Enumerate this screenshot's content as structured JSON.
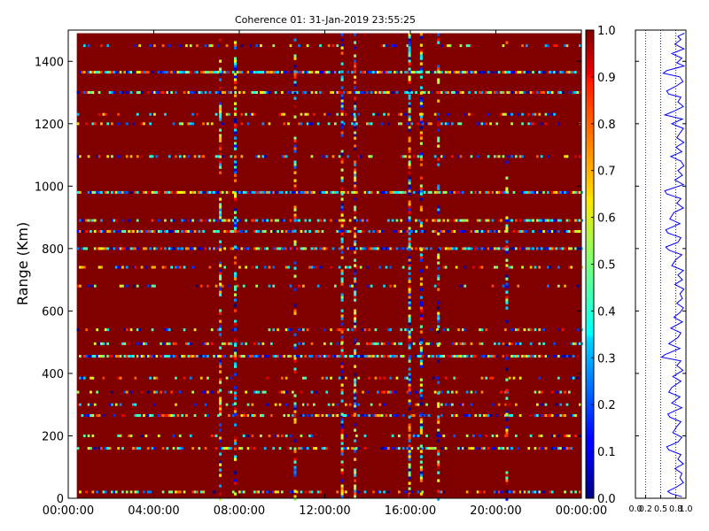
{
  "chart_data": [
    {
      "type": "heatmap",
      "title": "Coherence 01: 31-Jan-2019 23:55:25",
      "ylabel": "Range (Km)",
      "xlabel": "",
      "x_tick_labels": [
        "00:00:00",
        "04:00:00",
        "08:00:00",
        "12:00:00",
        "16:00:00",
        "20:00:00",
        "00:00:00"
      ],
      "x_ticks_hours": [
        0,
        4,
        8,
        12,
        16,
        20,
        24
      ],
      "xlim_hours": [
        0,
        24
      ],
      "ylim": [
        0,
        1500
      ],
      "y_ticks": [
        0,
        200,
        400,
        600,
        800,
        1000,
        1200,
        1400
      ],
      "value_range": [
        0.0,
        1.0
      ],
      "colormap": "jet",
      "background_value": 1.0,
      "data_extent_hours": [
        0.4,
        24
      ],
      "data_extent_range": [
        0,
        1490
      ],
      "colorbar": {
        "ticks": [
          0.0,
          0.1,
          0.2,
          0.3,
          0.4,
          0.5,
          0.6,
          0.7,
          0.8,
          0.9,
          1.0
        ],
        "tick_labels": [
          "0.0",
          "0.1",
          "0.2",
          "0.3",
          "0.4",
          "0.5",
          "0.6",
          "0.7",
          "0.8",
          "0.9",
          "1.0"
        ]
      },
      "low_coherence_range_bands_km": [
        {
          "range": 20,
          "weight": 0.5
        },
        {
          "range": 160,
          "weight": 0.6
        },
        {
          "range": 200,
          "weight": 0.3
        },
        {
          "range": 265,
          "weight": 0.6
        },
        {
          "range": 300,
          "weight": 0.3
        },
        {
          "range": 340,
          "weight": 0.4
        },
        {
          "range": 385,
          "weight": 0.3
        },
        {
          "range": 455,
          "weight": 0.95
        },
        {
          "range": 495,
          "weight": 0.45
        },
        {
          "range": 540,
          "weight": 0.35
        },
        {
          "range": 680,
          "weight": 0.25
        },
        {
          "range": 740,
          "weight": 0.35
        },
        {
          "range": 800,
          "weight": 0.85
        },
        {
          "range": 855,
          "weight": 0.75
        },
        {
          "range": 890,
          "weight": 0.6
        },
        {
          "range": 980,
          "weight": 0.9
        },
        {
          "range": 1095,
          "weight": 0.45
        },
        {
          "range": 1200,
          "weight": 0.4
        },
        {
          "range": 1230,
          "weight": 0.3
        },
        {
          "range": 1300,
          "weight": 0.75
        },
        {
          "range": 1365,
          "weight": 1.0
        },
        {
          "range": 1450,
          "weight": 0.3
        }
      ],
      "low_coherence_time_bands_hours": [
        {
          "time": 7.1,
          "weight": 0.5
        },
        {
          "time": 7.8,
          "weight": 0.7
        },
        {
          "time": 10.6,
          "weight": 0.45
        },
        {
          "time": 12.8,
          "weight": 0.7
        },
        {
          "time": 13.4,
          "weight": 0.75
        },
        {
          "time": 15.95,
          "weight": 0.95
        },
        {
          "time": 16.5,
          "weight": 0.7
        },
        {
          "time": 17.3,
          "weight": 0.55
        },
        {
          "time": 20.5,
          "weight": 0.35
        }
      ]
    },
    {
      "type": "line",
      "title": "",
      "xlabel": "",
      "ylabel": "",
      "xlim": [
        0.0,
        1.0
      ],
      "ylim": [
        0,
        1500
      ],
      "x_tick_labels": [
        "0.0",
        "0.2",
        "0.5",
        "0.8",
        "1.0"
      ],
      "x_ticks": [
        0.0,
        0.2,
        0.5,
        0.8,
        1.0
      ],
      "reference_lines": [
        0.2,
        0.5,
        0.8
      ],
      "series": [
        {
          "color": "#0000ff",
          "points": [
            [
              0.97,
              1490
            ],
            [
              0.84,
              1480
            ],
            [
              0.9,
              1470
            ],
            [
              0.78,
              1455
            ],
            [
              0.96,
              1440
            ],
            [
              0.72,
              1425
            ],
            [
              0.92,
              1410
            ],
            [
              0.82,
              1395
            ],
            [
              0.96,
              1385
            ],
            [
              0.62,
              1370
            ],
            [
              0.55,
              1362
            ],
            [
              0.88,
              1350
            ],
            [
              0.94,
              1335
            ],
            [
              0.8,
              1320
            ],
            [
              0.62,
              1305
            ],
            [
              0.66,
              1295
            ],
            [
              0.9,
              1285
            ],
            [
              0.84,
              1270
            ],
            [
              0.95,
              1255
            ],
            [
              0.76,
              1240
            ],
            [
              0.58,
              1228
            ],
            [
              0.93,
              1215
            ],
            [
              0.72,
              1200
            ],
            [
              0.95,
              1185
            ],
            [
              0.88,
              1170
            ],
            [
              0.82,
              1155
            ],
            [
              0.96,
              1140
            ],
            [
              0.8,
              1125
            ],
            [
              0.92,
              1110
            ],
            [
              0.7,
              1095
            ],
            [
              0.9,
              1080
            ],
            [
              0.96,
              1065
            ],
            [
              0.84,
              1050
            ],
            [
              0.93,
              1035
            ],
            [
              0.78,
              1020
            ],
            [
              0.95,
              1005
            ],
            [
              0.58,
              985
            ],
            [
              0.62,
              975
            ],
            [
              0.9,
              960
            ],
            [
              0.82,
              945
            ],
            [
              0.95,
              930
            ],
            [
              0.76,
              915
            ],
            [
              0.68,
              895
            ],
            [
              0.88,
              880
            ],
            [
              0.6,
              860
            ],
            [
              0.64,
              850
            ],
            [
              0.9,
              835
            ],
            [
              0.84,
              820
            ],
            [
              0.6,
              805
            ],
            [
              0.66,
              795
            ],
            [
              0.92,
              780
            ],
            [
              0.8,
              765
            ],
            [
              0.72,
              745
            ],
            [
              0.95,
              730
            ],
            [
              0.84,
              715
            ],
            [
              0.93,
              700
            ],
            [
              0.78,
              685
            ],
            [
              0.96,
              670
            ],
            [
              0.88,
              655
            ],
            [
              0.93,
              640
            ],
            [
              0.82,
              625
            ],
            [
              0.95,
              610
            ],
            [
              0.88,
              595
            ],
            [
              0.76,
              580
            ],
            [
              0.93,
              565
            ],
            [
              0.7,
              545
            ],
            [
              0.9,
              530
            ],
            [
              0.84,
              515
            ],
            [
              0.66,
              495
            ],
            [
              0.88,
              480
            ],
            [
              0.58,
              460
            ],
            [
              0.52,
              452
            ],
            [
              0.9,
              440
            ],
            [
              0.82,
              425
            ],
            [
              0.94,
              410
            ],
            [
              0.74,
              390
            ],
            [
              0.9,
              375
            ],
            [
              0.72,
              355
            ],
            [
              0.66,
              340
            ],
            [
              0.88,
              325
            ],
            [
              0.72,
              305
            ],
            [
              0.92,
              290
            ],
            [
              0.64,
              270
            ],
            [
              0.68,
              260
            ],
            [
              0.9,
              245
            ],
            [
              0.82,
              230
            ],
            [
              0.74,
              210
            ],
            [
              0.92,
              195
            ],
            [
              0.84,
              180
            ],
            [
              0.62,
              165
            ],
            [
              0.66,
              155
            ],
            [
              0.9,
              140
            ],
            [
              0.84,
              125
            ],
            [
              0.95,
              110
            ],
            [
              0.78,
              95
            ],
            [
              0.92,
              80
            ],
            [
              0.88,
              65
            ],
            [
              0.95,
              50
            ],
            [
              0.8,
              35
            ],
            [
              0.64,
              22
            ],
            [
              0.7,
              15
            ],
            [
              0.92,
              5
            ]
          ]
        }
      ]
    }
  ]
}
